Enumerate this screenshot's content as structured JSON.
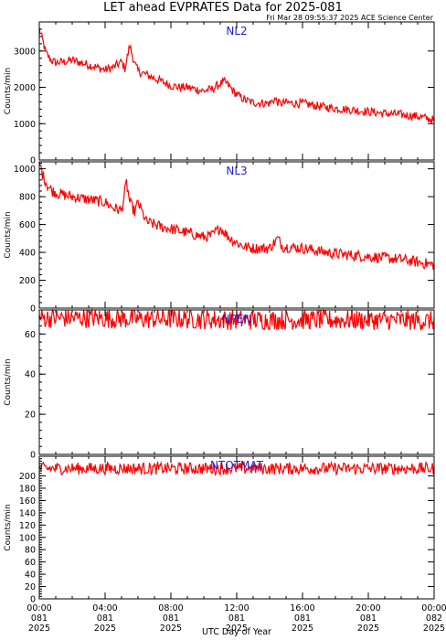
{
  "title": "LET ahead EVPRATES Data for 2025-081",
  "subtitle": "Fri Mar 28 09:55:37 2025 ACE Science Center",
  "xlabel": "UTC Day of Year",
  "colors": {
    "series": "#ff0000",
    "panel_label": "#1f1fd8",
    "axes": "#000000"
  },
  "chart_data": [
    {
      "type": "line",
      "panel_label": "NL2",
      "ylabel": "Counts/min",
      "ylim": [
        0,
        3800
      ],
      "yticks": [
        0,
        1000,
        2000,
        3000
      ],
      "xlim": [
        0,
        24
      ],
      "x": [
        0,
        0.2,
        0.4,
        0.7,
        1,
        1.5,
        2,
        2.5,
        3,
        3.5,
        4,
        4.5,
        5,
        5.2,
        5.5,
        5.8,
        6,
        6.5,
        7,
        7.5,
        8,
        8.5,
        9,
        9.5,
        10,
        10.5,
        11,
        11.3,
        11.6,
        12,
        12.5,
        13,
        13.5,
        14,
        14.3,
        14.6,
        15,
        15.5,
        16,
        17,
        18,
        19,
        20,
        21,
        22,
        23,
        23.5,
        24
      ],
      "values": [
        3600,
        3300,
        2950,
        2750,
        2680,
        2700,
        2750,
        2680,
        2620,
        2550,
        2480,
        2550,
        2700,
        2520,
        3150,
        2650,
        2450,
        2350,
        2250,
        2150,
        2050,
        2000,
        2000,
        1950,
        1900,
        1950,
        2100,
        2150,
        2000,
        1800,
        1650,
        1580,
        1570,
        1560,
        1680,
        1550,
        1580,
        1560,
        1560,
        1480,
        1420,
        1380,
        1330,
        1280,
        1250,
        1200,
        1150,
        1100
      ],
      "noise": 120
    },
    {
      "type": "line",
      "panel_label": "NL3",
      "ylabel": "Counts/min",
      "ylim": [
        0,
        1050
      ],
      "yticks": [
        0,
        200,
        400,
        600,
        800,
        1000
      ],
      "xlim": [
        0,
        24
      ],
      "x": [
        0,
        0.2,
        0.5,
        0.8,
        1.2,
        2,
        3,
        4,
        4.5,
        5,
        5.3,
        5.5,
        5.8,
        6,
        6.5,
        7,
        7.5,
        8,
        9,
        10,
        10.5,
        11,
        11.5,
        12,
        12.5,
        13,
        14,
        14.5,
        14.8,
        15,
        16,
        17,
        18,
        19,
        20,
        21,
        22,
        23,
        24
      ],
      "values": [
        1050,
        960,
        880,
        840,
        820,
        800,
        780,
        760,
        720,
        700,
        900,
        760,
        690,
        760,
        620,
        600,
        580,
        570,
        540,
        510,
        520,
        580,
        510,
        470,
        440,
        430,
        430,
        500,
        440,
        440,
        430,
        410,
        390,
        380,
        370,
        360,
        350,
        330,
        310
      ],
      "noise": 40
    },
    {
      "type": "line",
      "panel_label": "NPEN",
      "ylabel": "Counts/min",
      "ylim": [
        0,
        72
      ],
      "yticks": [
        0,
        20,
        40,
        60
      ],
      "xlim": [
        0,
        24
      ],
      "x": [
        0,
        3,
        6,
        9,
        12,
        15,
        18,
        21,
        24
      ],
      "values": [
        68,
        68,
        67.5,
        67.5,
        67,
        67,
        67,
        67,
        66.5
      ],
      "noise": 5
    },
    {
      "type": "line",
      "panel_label": "NTOTMAT",
      "ylabel": "Counts/min",
      "ylim": [
        0,
        232
      ],
      "yticks": [
        0,
        20,
        40,
        60,
        80,
        100,
        120,
        140,
        160,
        180,
        200
      ],
      "ytick_labels": [
        0,
        20,
        40,
        60,
        80,
        100,
        120,
        140,
        160,
        180,
        200
      ],
      "xlim": [
        0,
        24
      ],
      "x": [
        0,
        3,
        6,
        9,
        12,
        15,
        18,
        21,
        24
      ],
      "values": [
        212,
        212,
        212,
        212,
        212,
        212,
        212,
        212,
        212
      ],
      "noise": 10
    }
  ],
  "xticks": [
    {
      "time": "00:00",
      "day": "081",
      "year": "2025"
    },
    {
      "time": "04:00",
      "day": "081",
      "year": "2025"
    },
    {
      "time": "08:00",
      "day": "081",
      "year": "2025"
    },
    {
      "time": "12:00",
      "day": "081",
      "year": "2025"
    },
    {
      "time": "16:00",
      "day": "081",
      "year": "2025"
    },
    {
      "time": "20:00",
      "day": "081",
      "year": "2025"
    },
    {
      "time": "00:00",
      "day": "082",
      "year": "2025"
    }
  ]
}
